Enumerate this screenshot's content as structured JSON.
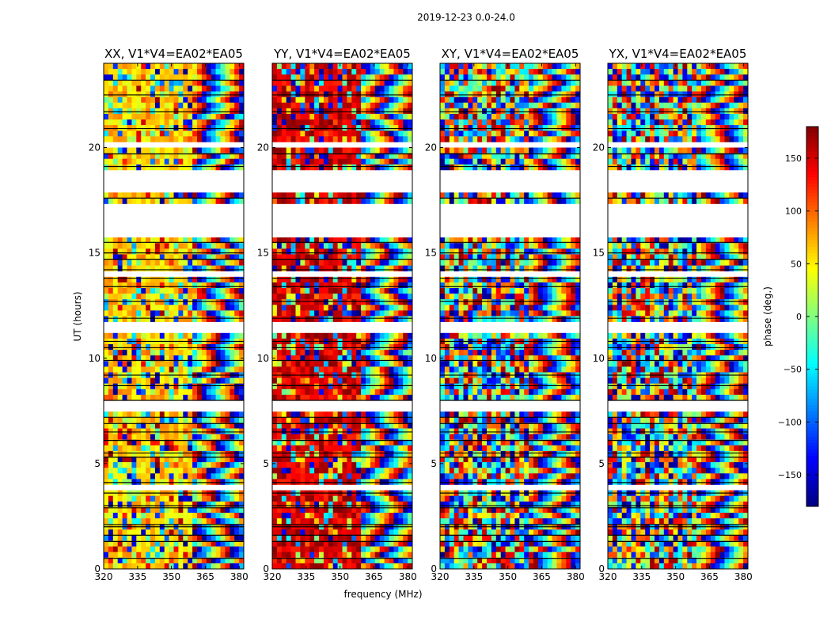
{
  "chart_data": {
    "type": "heatmap",
    "suptitle": "2019-12-23 0.0-24.0",
    "xlabel": "frequency (MHz)",
    "ylabel": "UT (hours)",
    "xlim": [
      320,
      382
    ],
    "ylim": [
      0,
      24
    ],
    "xticks": [
      320,
      335,
      350,
      365,
      380
    ],
    "yticks": [
      0,
      5,
      10,
      15,
      20
    ],
    "colorbar": {
      "label": "phase (deg.)",
      "range": [
        -180,
        180
      ],
      "ticks": [
        150,
        100,
        50,
        0,
        -50,
        -100,
        -150
      ],
      "tick_labels": [
        "150",
        "100",
        "50",
        "0",
        "−50",
        "−100",
        "−150"
      ],
      "colormap": "jet"
    },
    "panels": [
      {
        "title": "XX, V1*V4=EA02*EA05",
        "coherent_phase": 60
      },
      {
        "title": "YY, V1*V4=EA02*EA05",
        "coherent_phase": 150
      },
      {
        "title": "XY, V1*V4=EA02*EA05",
        "coherent_phase": null
      },
      {
        "title": "YX, V1*V4=EA02*EA05",
        "coherent_phase": null
      }
    ],
    "coherent_band_mhz": [
      320,
      360
    ],
    "flagged_ut_ranges": [
      [
        15.7,
        17.4
      ],
      [
        18.0,
        18.9
      ],
      [
        20.0,
        20.2
      ],
      [
        13.9,
        14.1
      ],
      [
        11.1,
        11.6
      ],
      [
        7.6,
        7.9
      ],
      [
        3.7,
        3.9
      ]
    ],
    "scan_boundaries_ut": [
      0.5,
      1.3,
      1.6,
      2.0,
      2.1,
      2.9,
      3.0,
      3.6,
      4.1,
      5.3,
      5.5,
      6.1,
      6.5,
      6.9,
      7.2,
      8.0,
      8.7,
      9.2,
      9.9,
      10.5,
      10.8,
      11.9,
      12.7,
      13.4,
      13.8,
      14.2,
      14.7,
      15.0,
      15.5,
      17.6,
      19.1,
      19.7,
      20.9,
      21.7,
      22.5,
      23.2
    ]
  }
}
